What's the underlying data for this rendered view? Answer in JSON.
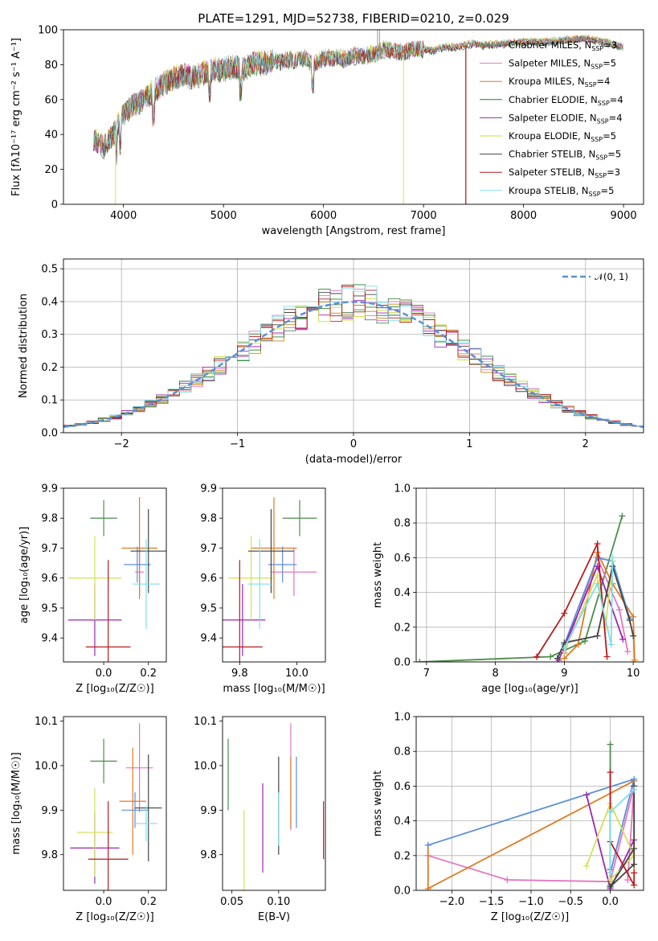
{
  "chart_data": [
    {
      "id": "spectrum",
      "type": "line",
      "title": "PLATE=1291, MJD=52738, FIBERID=0210, z=0.029",
      "xlabel": "wavelength [Angstrom, rest frame]",
      "ylabel": "Flux [fλ10⁻¹⁷ erg cm⁻² s⁻¹ A⁻¹]",
      "xlim": [
        3400,
        9200
      ],
      "ylim": [
        0,
        100
      ],
      "xticks": [
        4000,
        5000,
        6000,
        7000,
        8000,
        9000
      ],
      "yticks": [
        0,
        20,
        40,
        60,
        80,
        100
      ],
      "legend_position": "right",
      "legend": [
        {
          "name": "Chabrier MILES, N_SSP=3",
          "color": "#4c8c4c"
        },
        {
          "name": "Salpeter MILES, N_SSP=5",
          "color": "#e377c2"
        },
        {
          "name": "Kroupa MILES, N_SSP=4",
          "color": "#c8861e"
        },
        {
          "name": "Chabrier ELODIE, N_SSP=4",
          "color": "#2e7d32"
        },
        {
          "name": "Salpeter ELODIE, N_SSP=4",
          "color": "#9c27b0"
        },
        {
          "name": "Kroupa ELODIE, N_SSP=5",
          "color": "#cddc39"
        },
        {
          "name": "Chabrier STELIB, N_SSP=5",
          "color": "#444444"
        },
        {
          "name": "Salpeter STELIB, N_SSP=3",
          "color": "#b71c1c"
        },
        {
          "name": "Kroupa STELIB, N_SSP=5",
          "color": "#80deea"
        }
      ],
      "continuum": {
        "x": [
          3700,
          3800,
          3900,
          4000,
          4100,
          4200,
          4300,
          4400,
          4500,
          4600,
          4700,
          4800,
          4900,
          5000,
          5100,
          5200,
          5300,
          5400,
          5500,
          5600,
          5700,
          5800,
          5900,
          6000,
          6100,
          6200,
          6300,
          6400,
          6500,
          6600,
          6700,
          6800,
          6900,
          7000,
          7100,
          7200,
          7300,
          7400,
          7500,
          7600,
          7800,
          8000,
          8200,
          8400,
          8600,
          8800,
          9000
        ],
        "y": [
          38,
          33,
          40,
          52,
          57,
          60,
          65,
          69,
          72,
          74,
          73,
          75,
          77,
          77,
          79,
          78,
          81,
          81,
          82,
          82,
          83,
          84,
          80,
          84,
          84,
          83,
          85,
          85,
          86,
          89,
          88,
          87,
          89,
          89,
          88,
          90,
          90,
          91,
          92,
          91,
          92,
          93,
          93,
          94,
          95,
          93,
          90
        ]
      },
      "dropouts": [
        {
          "x": 3920,
          "y": 0
        },
        {
          "x": 6800,
          "y": 0
        },
        {
          "x": 7420,
          "y": 0
        },
        {
          "x": 6540,
          "y": 100
        }
      ]
    },
    {
      "id": "residuals",
      "type": "bar",
      "xlabel": "(data-model)/error",
      "ylabel": "Normed distribution",
      "xlim": [
        -2.5,
        2.5
      ],
      "ylim": [
        0,
        0.53
      ],
      "xticks": [
        -2,
        -1,
        0,
        1,
        2
      ],
      "xtick_labels": [
        "−2",
        "−1",
        "0",
        "1",
        "2"
      ],
      "yticks": [
        0.0,
        0.1,
        0.2,
        0.3,
        0.4,
        0.5
      ],
      "ytick_labels": [
        "0.0",
        "0.1",
        "0.2",
        "0.3",
        "0.4",
        "0.5"
      ],
      "grid": true,
      "bin_width": 0.1,
      "legend": [
        {
          "name": "𝒩(0, 1)",
          "color": "#5b8fd6",
          "style": "dashed"
        }
      ]
    },
    {
      "id": "age-vs-Z",
      "type": "scatter",
      "xlabel": "Z [log₁₀(Z/Z☉)]",
      "ylabel": "age  [log₁₀(age/yr)]",
      "xlim": [
        -0.18,
        0.28
      ],
      "ylim": [
        9.32,
        9.9
      ],
      "xticks": [
        0.0,
        0.2
      ],
      "xtick_labels": [
        "0.0",
        "0.2"
      ],
      "yticks": [
        9.4,
        9.5,
        9.6,
        9.7,
        9.8,
        9.9
      ],
      "ytick_labels": [
        "9.4",
        "9.5",
        "9.6",
        "9.7",
        "9.8",
        "9.9"
      ],
      "points": [
        {
          "x": 0.0,
          "xerr": 0.06,
          "y": 9.8,
          "yerr": 0.06,
          "color": "#4c8c4c"
        },
        {
          "x": 0.16,
          "xerr": 0.02,
          "y": 9.62,
          "yerr": 0.08,
          "color": "#e377c2"
        },
        {
          "x": 0.16,
          "xerr": 0.08,
          "y": 9.7,
          "yerr": 0.17,
          "color": "#e07b22"
        },
        {
          "x": 0.15,
          "xerr": 0.06,
          "y": 9.645,
          "yerr": 0.06,
          "color": "#5b8fd6"
        },
        {
          "x": -0.04,
          "xerr": 0.12,
          "y": 9.46,
          "yerr": 0.12,
          "color": "#9c27b0"
        },
        {
          "x": -0.04,
          "xerr": 0.12,
          "y": 9.6,
          "yerr": 0.14,
          "color": "#d4e157"
        },
        {
          "x": 0.2,
          "xerr": 0.08,
          "y": 9.69,
          "yerr": 0.14,
          "color": "#444444"
        },
        {
          "x": 0.02,
          "xerr": 0.1,
          "y": 9.37,
          "yerr": 0.29,
          "color": "#b71c1c"
        },
        {
          "x": 0.19,
          "xerr": 0.06,
          "y": 9.58,
          "yerr": 0.15,
          "color": "#80deea"
        }
      ]
    },
    {
      "id": "age-vs-mass",
      "type": "scatter",
      "xlabel": "mass [log₁₀(M/M☉)]",
      "ylabel": "",
      "xlim": [
        9.74,
        10.1
      ],
      "ylim": [
        9.32,
        9.9
      ],
      "xticks": [
        9.8,
        10.0
      ],
      "xtick_labels": [
        "9.8",
        "10.0"
      ],
      "yticks": [
        9.4,
        9.5,
        9.6,
        9.7,
        9.8,
        9.9
      ],
      "ytick_labels": [
        "9.4",
        "9.5",
        "9.6",
        "9.7",
        "9.8",
        "9.9"
      ],
      "points": [
        {
          "x": 10.01,
          "xerr": 0.06,
          "y": 9.8,
          "yerr": 0.06,
          "color": "#4c8c4c"
        },
        {
          "x": 9.99,
          "xerr": 0.08,
          "y": 9.62,
          "yerr": 0.08,
          "color": "#e377c2"
        },
        {
          "x": 9.92,
          "xerr": 0.08,
          "y": 9.7,
          "yerr": 0.17,
          "color": "#e07b22"
        },
        {
          "x": 9.95,
          "xerr": 0.05,
          "y": 9.645,
          "yerr": 0.06,
          "color": "#5b8fd6"
        },
        {
          "x": 9.81,
          "xerr": 0.08,
          "y": 9.46,
          "yerr": 0.12,
          "color": "#9c27b0"
        },
        {
          "x": 9.84,
          "xerr": 0.08,
          "y": 9.6,
          "yerr": 0.14,
          "color": "#d4e157"
        },
        {
          "x": 9.91,
          "xerr": 0.08,
          "y": 9.69,
          "yerr": 0.14,
          "color": "#444444"
        },
        {
          "x": 9.8,
          "xerr": 0.08,
          "y": 9.37,
          "yerr": 0.29,
          "color": "#b71c1c"
        },
        {
          "x": 9.87,
          "xerr": 0.04,
          "y": 9.58,
          "yerr": 0.15,
          "color": "#80deea"
        }
      ]
    },
    {
      "id": "mass-weight-vs-age",
      "type": "line",
      "xlabel": "age  [log₁₀(age/yr)]",
      "ylabel": "mass weight",
      "xlim": [
        6.85,
        10.15
      ],
      "ylim": [
        0,
        1.0
      ],
      "xticks": [
        7,
        8,
        9,
        10
      ],
      "xtick_labels": [
        "7",
        "8",
        "9",
        "10"
      ],
      "yticks": [
        0.0,
        0.2,
        0.4,
        0.6,
        0.8,
        1.0
      ],
      "ytick_labels": [
        "0.0",
        "0.2",
        "0.4",
        "0.6",
        "0.8",
        "1.0"
      ],
      "grid": true,
      "series": [
        {
          "color": "#4c8c4c",
          "x": [
            6.9,
            8.8,
            9.3,
            9.84
          ],
          "y": [
            0.0,
            0.03,
            0.12,
            0.84
          ]
        },
        {
          "color": "#e377c2",
          "x": [
            9.0,
            9.48,
            9.8,
            9.92
          ],
          "y": [
            0.05,
            0.6,
            0.3,
            0.06
          ]
        },
        {
          "color": "#e07b22",
          "x": [
            9.0,
            9.2,
            9.48,
            9.7,
            10.0,
            10.02
          ],
          "y": [
            0.02,
            0.1,
            0.63,
            0.45,
            0.26,
            0.01
          ]
        },
        {
          "color": "#5b8fd6",
          "x": [
            9.0,
            9.48,
            9.7,
            9.95
          ],
          "y": [
            0.1,
            0.6,
            0.58,
            0.25
          ]
        },
        {
          "color": "#9c27b0",
          "x": [
            8.92,
            9.48,
            9.85
          ],
          "y": [
            0.01,
            0.55,
            0.13
          ]
        },
        {
          "color": "#d4e157",
          "x": [
            9.0,
            9.48,
            9.6,
            9.7
          ],
          "y": [
            0.06,
            0.5,
            0.2,
            0.58
          ]
        },
        {
          "color": "#444444",
          "x": [
            8.9,
            9.0,
            9.48,
            9.7,
            9.95,
            10.0
          ],
          "y": [
            0.02,
            0.11,
            0.15,
            0.55,
            0.24,
            0.15
          ]
        },
        {
          "color": "#b71c1c",
          "x": [
            8.6,
            9.0,
            9.48,
            9.62
          ],
          "y": [
            0.03,
            0.28,
            0.68,
            0.03
          ]
        },
        {
          "color": "#80deea",
          "x": [
            9.0,
            9.48,
            9.68,
            9.7
          ],
          "y": [
            0.08,
            0.45,
            0.1,
            0.6
          ]
        }
      ]
    },
    {
      "id": "mass-vs-Z",
      "type": "scatter",
      "xlabel": "Z [log₁₀(Z/Z☉)]",
      "ylabel": "mass [log₁₀(M/M☉)]",
      "xlim": [
        -0.18,
        0.28
      ],
      "ylim": [
        9.72,
        10.11
      ],
      "xticks": [
        0.0,
        0.2
      ],
      "xtick_labels": [
        "0.0",
        "0.2"
      ],
      "yticks": [
        9.8,
        9.9,
        10.0,
        10.1
      ],
      "ytick_labels": [
        "9.8",
        "9.9",
        "10.0",
        "10.1"
      ],
      "points": [
        {
          "x": 0.0,
          "xerr": 0.06,
          "y": 10.01,
          "yerr": 0.05,
          "color": "#4c8c4c"
        },
        {
          "x": 0.16,
          "xerr": 0.06,
          "y": 9.995,
          "yerr": 0.1,
          "color": "#e377c2"
        },
        {
          "x": 0.13,
          "xerr": 0.06,
          "y": 9.92,
          "yerr": 0.12,
          "color": "#e07b22"
        },
        {
          "x": 0.14,
          "xerr": 0.06,
          "y": 9.9,
          "yerr": 0.04,
          "color": "#5b8fd6"
        },
        {
          "x": -0.04,
          "xerr": 0.11,
          "y": 9.815,
          "yerr": 0.08,
          "color": "#9c27b0"
        },
        {
          "x": -0.04,
          "xerr": 0.08,
          "y": 9.85,
          "yerr": 0.1,
          "color": "#d4e157"
        },
        {
          "x": 0.2,
          "xerr": 0.06,
          "y": 9.905,
          "yerr": 0.12,
          "color": "#444444"
        },
        {
          "x": 0.02,
          "xerr": 0.09,
          "y": 9.79,
          "yerr": 0.13,
          "color": "#b71c1c"
        },
        {
          "x": 0.19,
          "xerr": 0.05,
          "y": 9.87,
          "yerr": 0.04,
          "color": "#80deea"
        }
      ]
    },
    {
      "id": "mass-vs-EBV",
      "type": "scatter",
      "xlabel": "E(B-V)",
      "ylabel": "",
      "xlim": [
        0.04,
        0.15
      ],
      "ylim": [
        9.72,
        10.11
      ],
      "xticks": [
        0.05,
        0.1
      ],
      "xtick_labels": [
        "0.05",
        "0.10"
      ],
      "yticks": [
        9.8,
        9.9,
        10.0,
        10.1
      ],
      "ytick_labels": [
        "9.8",
        "9.9",
        "10.0",
        "10.1"
      ],
      "points": [
        {
          "x": 0.046,
          "y": 9.98,
          "yerr": 0.08,
          "color": "#4c8c4c"
        },
        {
          "x": 0.113,
          "y": 9.975,
          "yerr": 0.12,
          "color": "#e377c2"
        },
        {
          "x": 0.113,
          "y": 9.94,
          "yerr": 0.08,
          "color": "#e07b22"
        },
        {
          "x": 0.119,
          "y": 9.94,
          "yerr": 0.08,
          "color": "#5b8fd6"
        },
        {
          "x": 0.083,
          "y": 9.86,
          "yerr": 0.1,
          "color": "#9c27b0"
        },
        {
          "x": 0.063,
          "y": 9.8,
          "yerr": 0.1,
          "color": "#d4e157"
        },
        {
          "x": 0.1,
          "y": 9.91,
          "yerr": 0.11,
          "color": "#444444"
        },
        {
          "x": 0.148,
          "y": 9.855,
          "yerr": 0.065,
          "color": "#b71c1c"
        },
        {
          "x": 0.1,
          "y": 9.88,
          "yerr": 0.06,
          "color": "#80deea"
        }
      ]
    },
    {
      "id": "mass-weight-vs-Z",
      "type": "line",
      "xlabel": "Z [log₁₀(Z/Z☉)]",
      "ylabel": "mass weight",
      "xlim": [
        -2.45,
        0.42
      ],
      "ylim": [
        0,
        1.0
      ],
      "xticks": [
        -2.0,
        -1.5,
        -1.0,
        -0.5,
        0.0
      ],
      "xtick_labels": [
        "−2.0",
        "−1.5",
        "−1.0",
        "−0.5",
        "0.0"
      ],
      "yticks": [
        0.0,
        0.2,
        0.4,
        0.6,
        0.8,
        1.0
      ],
      "ytick_labels": [
        "0.0",
        "0.2",
        "0.4",
        "0.6",
        "0.8",
        "1.0"
      ],
      "grid": true,
      "series": [
        {
          "color": "#4c8c4c",
          "x": [
            0.0,
            0.0,
            0.0
          ],
          "y": [
            0.84,
            0.03,
            0.12
          ]
        },
        {
          "color": "#e377c2",
          "x": [
            -2.3,
            -1.3,
            0.0,
            0.3,
            0.22
          ],
          "y": [
            0.2,
            0.06,
            0.05,
            0.6,
            0.06
          ]
        },
        {
          "color": "#e07b22",
          "x": [
            -2.3,
            -2.3,
            0.3,
            0.3
          ],
          "y": [
            0.26,
            0.01,
            0.63,
            0.1
          ]
        },
        {
          "color": "#5b8fd6",
          "x": [
            -2.3,
            0.3,
            0.0
          ],
          "y": [
            0.26,
            0.64,
            0.1
          ]
        },
        {
          "color": "#9c27b0",
          "x": [
            -0.3,
            0.0,
            0.3
          ],
          "y": [
            0.55,
            0.01,
            0.29
          ]
        },
        {
          "color": "#d4e157",
          "x": [
            -0.3,
            0.0,
            0.3,
            0.0
          ],
          "y": [
            0.14,
            0.5,
            0.2,
            0.06
          ]
        },
        {
          "color": "#444444",
          "x": [
            0.3,
            0.3,
            0.0,
            0.3
          ],
          "y": [
            0.6,
            0.15,
            0.02,
            0.24
          ]
        },
        {
          "color": "#b71c1c",
          "x": [
            0.0,
            0.0,
            0.3,
            0.3
          ],
          "y": [
            0.68,
            0.28,
            0.03,
            0.1
          ]
        },
        {
          "color": "#80deea",
          "x": [
            0.0,
            0.0,
            0.3
          ],
          "y": [
            0.1,
            0.45,
            0.58
          ]
        }
      ]
    }
  ]
}
